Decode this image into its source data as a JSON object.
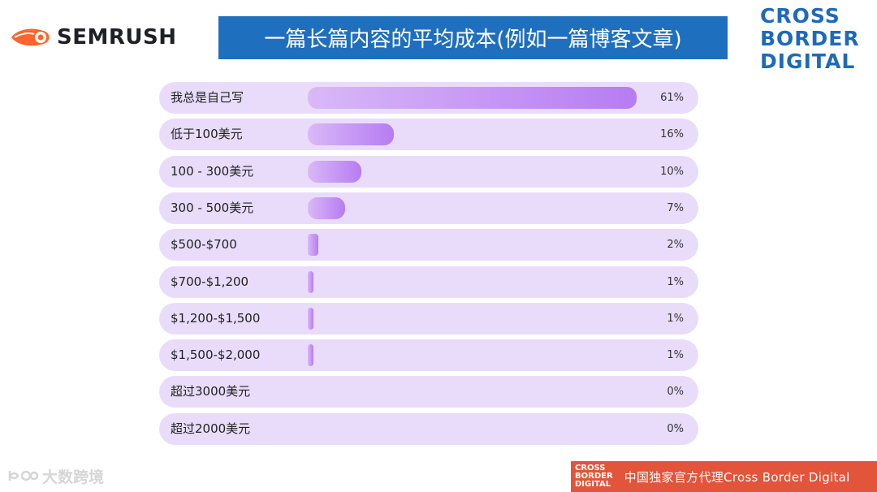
{
  "brand": {
    "semrush_logo": "SEMRUSH",
    "cbd_logo": [
      "CROSS",
      "BORDER",
      "DIGITAL"
    ],
    "accent": "#1f6fbf",
    "footer_color": "#e2553b"
  },
  "title": "一篇长篇内容的平均成本(例如一篇博客文章)",
  "chart_data": {
    "type": "bar",
    "orientation": "horizontal",
    "categories": [
      "我总是自己写",
      "低于100美元",
      "100 - 300美元",
      "300 - 500美元",
      "$500-$700",
      "$700-$1,200",
      "$1,200-$1,500",
      "$1,500-$2,000",
      "超过3000美元",
      "超过2000美元"
    ],
    "values": [
      61,
      16,
      10,
      7,
      2,
      1,
      1,
      1,
      0,
      0
    ],
    "value_labels": [
      "61%",
      "16%",
      "10%",
      "7%",
      "2%",
      "1%",
      "1%",
      "1%",
      "0%",
      "0%"
    ],
    "xlim": [
      0,
      61
    ],
    "bar_color": "#b67cf2",
    "track_color": "#e9dcfa"
  },
  "watermark": "大数跨境",
  "footer": {
    "logo": [
      "CROSS",
      "BORDER",
      "DIGITAL"
    ],
    "text": "中国独家官方代理Cross Border Digital"
  }
}
